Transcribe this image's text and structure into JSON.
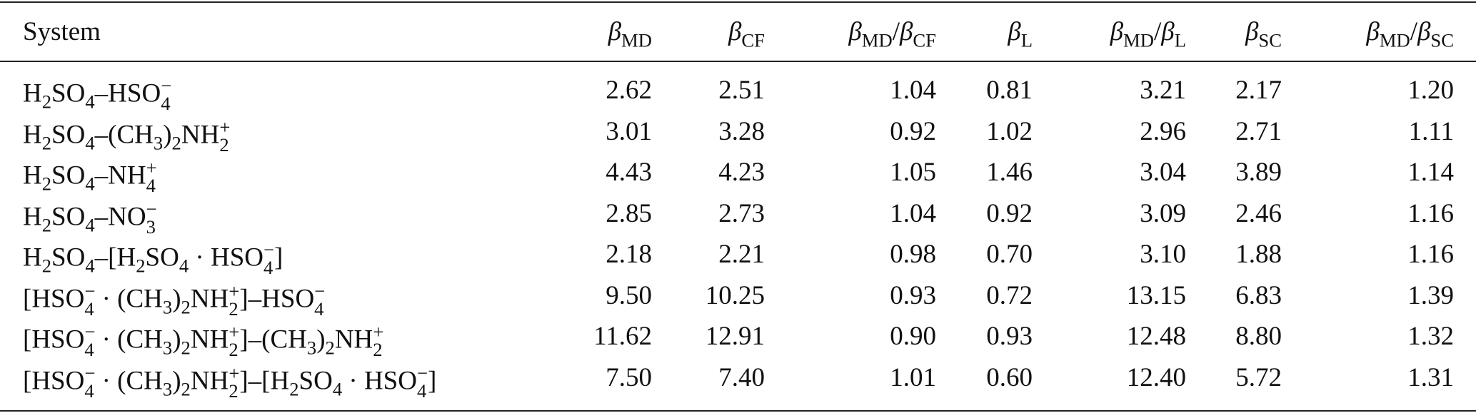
{
  "table": {
    "header": [
      [
        {
          "t": "System"
        }
      ],
      [
        {
          "var": "β"
        },
        {
          "sub": "MD"
        }
      ],
      [
        {
          "var": "β"
        },
        {
          "sub": "CF"
        }
      ],
      [
        {
          "var": "β"
        },
        {
          "sub": "MD"
        },
        {
          "t": "/"
        },
        {
          "var": "β"
        },
        {
          "sub": "CF"
        }
      ],
      [
        {
          "var": "β"
        },
        {
          "sub": "L"
        }
      ],
      [
        {
          "var": "β"
        },
        {
          "sub": "MD"
        },
        {
          "t": "/"
        },
        {
          "var": "β"
        },
        {
          "sub": "L"
        }
      ],
      [
        {
          "var": "β"
        },
        {
          "sub": "SC"
        }
      ],
      [
        {
          "var": "β"
        },
        {
          "sub": "MD"
        },
        {
          "t": "/"
        },
        {
          "var": "β"
        },
        {
          "sub": "SC"
        }
      ]
    ],
    "rows": [
      [
        [
          {
            "t": "H"
          },
          {
            "sub": "2"
          },
          {
            "t": "SO"
          },
          {
            "sub": "4"
          },
          {
            "t": "–HSO"
          },
          {
            "sub": "4",
            "sup": "−"
          }
        ],
        "2.62",
        "2.51",
        "1.04",
        "0.81",
        "3.21",
        "2.17",
        "1.20"
      ],
      [
        [
          {
            "t": "H"
          },
          {
            "sub": "2"
          },
          {
            "t": "SO"
          },
          {
            "sub": "4"
          },
          {
            "t": "–(CH"
          },
          {
            "sub": "3"
          },
          {
            "t": ")"
          },
          {
            "sub": "2"
          },
          {
            "t": "NH"
          },
          {
            "sub": "2",
            "sup": "+"
          }
        ],
        "3.01",
        "3.28",
        "0.92",
        "1.02",
        "2.96",
        "2.71",
        "1.11"
      ],
      [
        [
          {
            "t": "H"
          },
          {
            "sub": "2"
          },
          {
            "t": "SO"
          },
          {
            "sub": "4"
          },
          {
            "t": "–NH"
          },
          {
            "sub": "4",
            "sup": "+"
          }
        ],
        "4.43",
        "4.23",
        "1.05",
        "1.46",
        "3.04",
        "3.89",
        "1.14"
      ],
      [
        [
          {
            "t": "H"
          },
          {
            "sub": "2"
          },
          {
            "t": "SO"
          },
          {
            "sub": "4"
          },
          {
            "t": "–NO"
          },
          {
            "sub": "3",
            "sup": "−"
          }
        ],
        "2.85",
        "2.73",
        "1.04",
        "0.92",
        "3.09",
        "2.46",
        "1.16"
      ],
      [
        [
          {
            "t": "H"
          },
          {
            "sub": "2"
          },
          {
            "t": "SO"
          },
          {
            "sub": "4"
          },
          {
            "t": "–[H"
          },
          {
            "sub": "2"
          },
          {
            "t": "SO"
          },
          {
            "sub": "4"
          },
          {
            "t": " · HSO"
          },
          {
            "sub": "4",
            "sup": "−"
          },
          {
            "t": "]"
          }
        ],
        "2.18",
        "2.21",
        "0.98",
        "0.70",
        "3.10",
        "1.88",
        "1.16"
      ],
      [
        [
          {
            "t": "[HSO"
          },
          {
            "sub": "4",
            "sup": "−"
          },
          {
            "t": " · (CH"
          },
          {
            "sub": "3"
          },
          {
            "t": ")"
          },
          {
            "sub": "2"
          },
          {
            "t": "NH"
          },
          {
            "sub": "2",
            "sup": "+"
          },
          {
            "t": "]–HSO"
          },
          {
            "sub": "4",
            "sup": "−"
          }
        ],
        "9.50",
        "10.25",
        "0.93",
        "0.72",
        "13.15",
        "6.83",
        "1.39"
      ],
      [
        [
          {
            "t": "[HSO"
          },
          {
            "sub": "4",
            "sup": "−"
          },
          {
            "t": " · (CH"
          },
          {
            "sub": "3"
          },
          {
            "t": ")"
          },
          {
            "sub": "2"
          },
          {
            "t": "NH"
          },
          {
            "sub": "2",
            "sup": "+"
          },
          {
            "t": "]–(CH"
          },
          {
            "sub": "3"
          },
          {
            "t": ")"
          },
          {
            "sub": "2"
          },
          {
            "t": "NH"
          },
          {
            "sub": "2",
            "sup": "+"
          }
        ],
        "11.62",
        "12.91",
        "0.90",
        "0.93",
        "12.48",
        "8.80",
        "1.32"
      ],
      [
        [
          {
            "t": "[HSO"
          },
          {
            "sub": "4",
            "sup": "−"
          },
          {
            "t": " · (CH"
          },
          {
            "sub": "3"
          },
          {
            "t": ")"
          },
          {
            "sub": "2"
          },
          {
            "t": "NH"
          },
          {
            "sub": "2",
            "sup": "+"
          },
          {
            "t": "]–[H"
          },
          {
            "sub": "2"
          },
          {
            "t": "SO"
          },
          {
            "sub": "4"
          },
          {
            "t": " · HSO"
          },
          {
            "sub": "4",
            "sup": "−"
          },
          {
            "t": "]"
          }
        ],
        "7.50",
        "7.40",
        "1.01",
        "0.60",
        "12.40",
        "5.72",
        "1.31"
      ]
    ]
  }
}
